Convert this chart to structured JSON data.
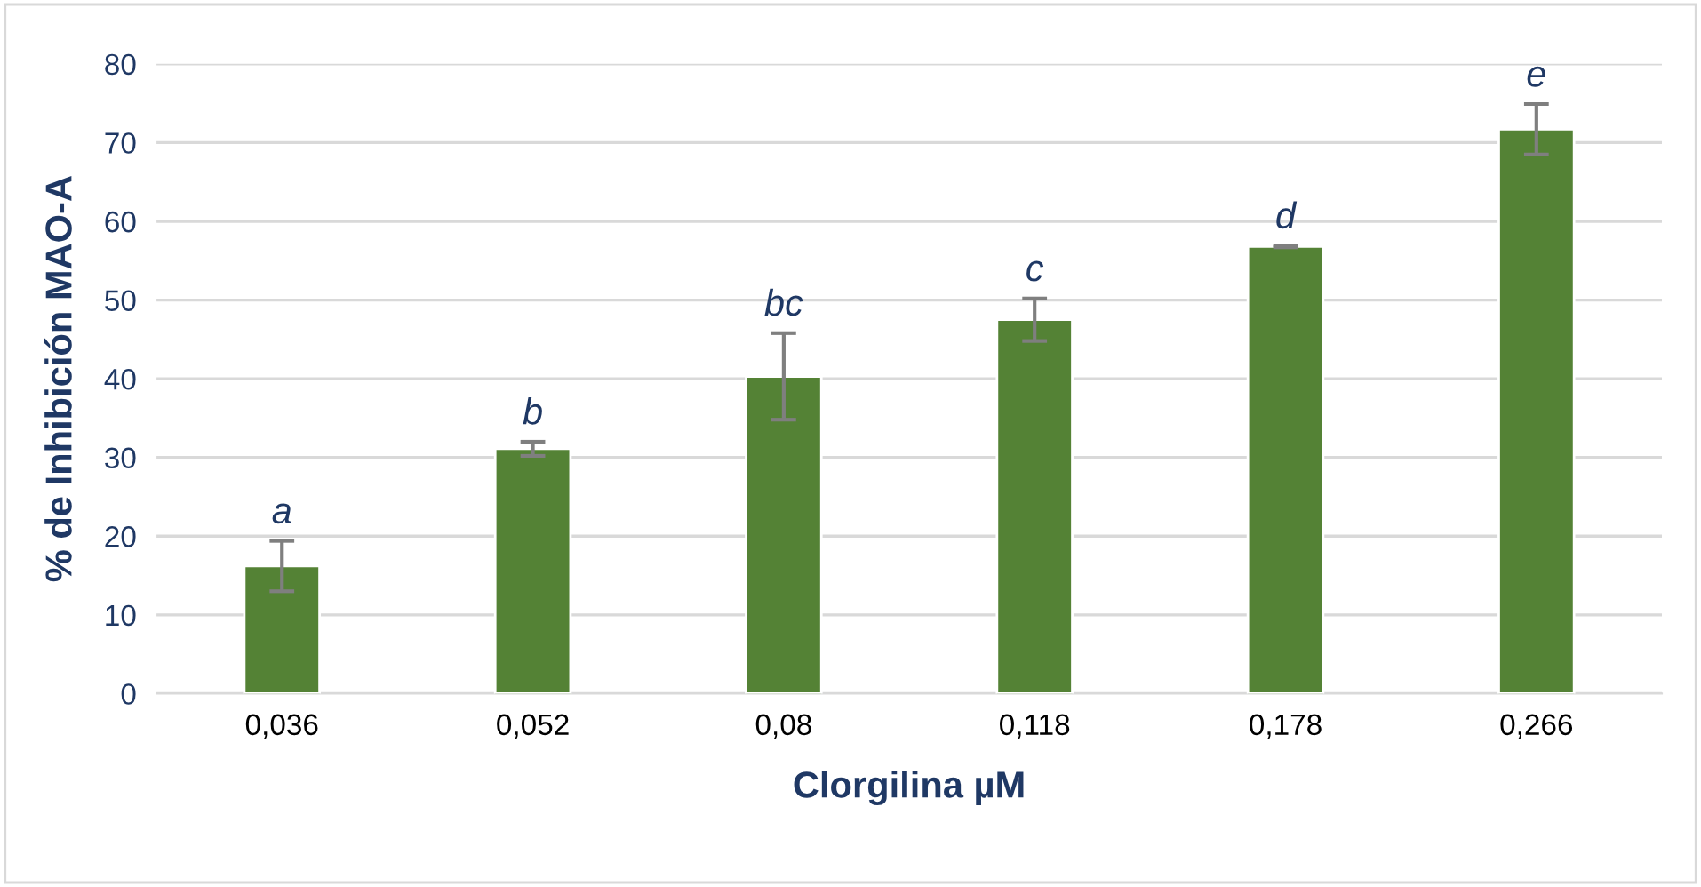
{
  "chart_data": {
    "type": "bar",
    "xlabel": "Clorgilina µM",
    "ylabel": "% de Inhibición MAO-A",
    "categories": [
      "0,036",
      "0,052",
      "0,08",
      "0,118",
      "0,178",
      "0,266"
    ],
    "values": [
      16.2,
      31.1,
      40.3,
      47.5,
      56.8,
      71.7
    ],
    "errors": [
      3.2,
      0.9,
      5.5,
      2.7,
      0.1,
      3.2
    ],
    "color": "#548235",
    "ylim": [
      0,
      80
    ],
    "yticks": [
      0,
      10,
      20,
      30,
      40,
      50,
      60,
      70,
      80
    ],
    "grid": "y",
    "annotations": [
      {
        "text": "a",
        "x": "0,036",
        "y": 19.4
      },
      {
        "text": "b",
        "x": "0,052",
        "y": 32.0
      },
      {
        "text": "bc",
        "x": "0,08",
        "y": 45.8
      },
      {
        "text": "c",
        "x": "0,118",
        "y": 50.2
      },
      {
        "text": "d",
        "x": "0,178",
        "y": 56.9
      },
      {
        "text": "e",
        "x": "0,266",
        "y": 74.9
      }
    ]
  }
}
